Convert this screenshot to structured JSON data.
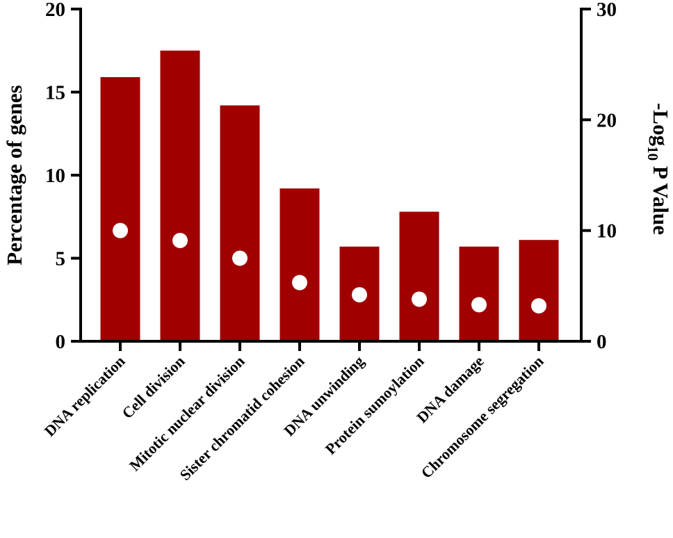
{
  "chart_data": {
    "type": "bar",
    "categories": [
      "DNA replication",
      "Cell division",
      "Mitotic nuclear division",
      "Sister chromatid cohesion",
      "DNA unwinding",
      "Protein sumoylation",
      "DNA damage",
      "Chromosome segregation"
    ],
    "series": [
      {
        "type": "bar",
        "axis": "left",
        "color": "#a00000",
        "values": [
          15.9,
          17.5,
          14.2,
          9.2,
          5.7,
          7.8,
          5.7,
          6.1
        ]
      },
      {
        "type": "scatter",
        "axis": "right",
        "color": "#ffffff",
        "values": [
          10.0,
          9.1,
          7.5,
          5.3,
          4.2,
          3.8,
          3.3,
          3.2
        ]
      }
    ],
    "ylabel": "Percentage of genes",
    "y2label_main": "-Log",
    "y2label_sub": "10",
    "y2label_tail": " P Value",
    "ylim": [
      0,
      20
    ],
    "y2lim": [
      0,
      30
    ],
    "yticks": [
      "0",
      "5",
      "10",
      "15",
      "20"
    ],
    "y2ticks": [
      "0",
      "10",
      "20",
      "30"
    ],
    "grid": false,
    "legend": "none"
  }
}
